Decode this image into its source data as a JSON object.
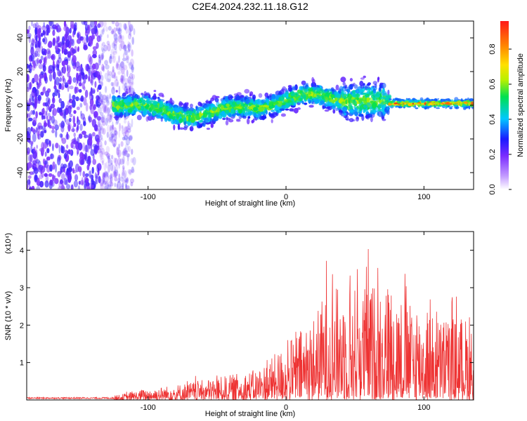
{
  "figure": {
    "title": "C2E4.2024.232.11.18.G12"
  },
  "chart_data": [
    {
      "type": "heatmap",
      "xlabel": "Height of straight line (km)",
      "ylabel": "Frequency (Hz)",
      "xlim": [
        -188,
        136
      ],
      "ylim": [
        -50,
        50
      ],
      "x_ticks": [
        -100,
        0,
        100
      ],
      "y_ticks": [
        -40,
        -20,
        0,
        20,
        40
      ],
      "colorbar": {
        "label": "Normalized spectral amplitude",
        "range": [
          0.0,
          0.96
        ],
        "ticks": [
          0.0,
          0.2,
          0.4,
          0.6,
          0.8
        ],
        "colors": [
          "#ffffff",
          "#7a2cff",
          "#1a1aff",
          "#00c8ff",
          "#00e050",
          "#b8f000",
          "#ffe000",
          "#ff8800",
          "#ff1a1a"
        ]
      },
      "regions": [
        {
          "x": [
            -188,
            -125
          ],
          "freq_center": 0,
          "freq_spread": 50,
          "level": 0.15,
          "description_free": true
        },
        {
          "x": [
            -125,
            75
          ],
          "freq_center": 0,
          "freq_spread": 10,
          "level": 0.3
        },
        {
          "x": [
            75,
            136
          ],
          "freq_center": 0,
          "freq_spread": 3,
          "level": 0.9
        }
      ]
    },
    {
      "type": "line",
      "xlabel": "Height of straight line (km)",
      "ylabel": "SNR (10 * v/v)",
      "y_multiplier": "(x10⁴)",
      "xlim": [
        -188,
        136
      ],
      "ylim": [
        0,
        4.5
      ],
      "x_ticks": [
        -100,
        0,
        100
      ],
      "y_ticks": [
        1,
        2,
        3,
        4
      ],
      "series": [
        {
          "color": "#ee3333",
          "envelope": [
            {
              "x": -188,
              "y": 0.05
            },
            {
              "x": -130,
              "y": 0.1
            },
            {
              "x": -100,
              "y": 0.4
            },
            {
              "x": -80,
              "y": 0.55
            },
            {
              "x": -50,
              "y": 0.8
            },
            {
              "x": -20,
              "y": 1.1
            },
            {
              "x": 0,
              "y": 2.0
            },
            {
              "x": 20,
              "y": 3.0
            },
            {
              "x": 30,
              "y": 4.0
            },
            {
              "x": 50,
              "y": 4.1
            },
            {
              "x": 75,
              "y": 4.3
            },
            {
              "x": 90,
              "y": 3.4
            },
            {
              "x": 110,
              "y": 3.0
            },
            {
              "x": 130,
              "y": 3.0
            },
            {
              "x": 136,
              "y": 2.5
            }
          ]
        }
      ]
    }
  ]
}
